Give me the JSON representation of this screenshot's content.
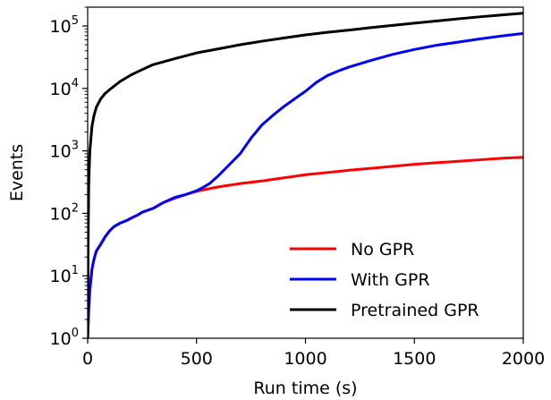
{
  "chart_data": {
    "type": "line",
    "xlabel": "Run time (s)",
    "ylabel": "Events",
    "xlim": [
      0,
      2000
    ],
    "ylim": [
      1,
      200000
    ],
    "yscale": "log",
    "x_ticks": [
      0,
      500,
      1000,
      1500,
      2000
    ],
    "x_tick_labels": [
      "0",
      "500",
      "1000",
      "1500",
      "2000"
    ],
    "y_ticks": [
      1,
      10,
      100,
      1000,
      10000,
      100000
    ],
    "y_tick_labels": [
      {
        "base": "10",
        "exp": "0"
      },
      {
        "base": "10",
        "exp": "1"
      },
      {
        "base": "10",
        "exp": "2"
      },
      {
        "base": "10",
        "exp": "3"
      },
      {
        "base": "10",
        "exp": "4"
      },
      {
        "base": "10",
        "exp": "5"
      }
    ],
    "grid": false,
    "legend_position": "lower-right",
    "series": [
      {
        "name": "No GPR",
        "color": "#ff0000",
        "points": [
          [
            0,
            1
          ],
          [
            5,
            3
          ],
          [
            10,
            6
          ],
          [
            20,
            13
          ],
          [
            30,
            19
          ],
          [
            40,
            25
          ],
          [
            60,
            32
          ],
          [
            80,
            42
          ],
          [
            100,
            52
          ],
          [
            120,
            61
          ],
          [
            150,
            70
          ],
          [
            180,
            77
          ],
          [
            200,
            84
          ],
          [
            230,
            94
          ],
          [
            250,
            104
          ],
          [
            300,
            120
          ],
          [
            350,
            150
          ],
          [
            400,
            175
          ],
          [
            450,
            200
          ],
          [
            500,
            225
          ],
          [
            550,
            245
          ],
          [
            600,
            265
          ],
          [
            700,
            300
          ],
          [
            800,
            330
          ],
          [
            900,
            370
          ],
          [
            1000,
            415
          ],
          [
            1100,
            450
          ],
          [
            1200,
            490
          ],
          [
            1300,
            525
          ],
          [
            1400,
            565
          ],
          [
            1500,
            610
          ],
          [
            1600,
            645
          ],
          [
            1700,
            680
          ],
          [
            1800,
            720
          ],
          [
            1900,
            760
          ],
          [
            2000,
            790
          ]
        ]
      },
      {
        "name": "With GPR",
        "color": "#0000ff",
        "points": [
          [
            0,
            1
          ],
          [
            5,
            3
          ],
          [
            10,
            6
          ],
          [
            20,
            13
          ],
          [
            30,
            19
          ],
          [
            40,
            25
          ],
          [
            60,
            32
          ],
          [
            80,
            42
          ],
          [
            100,
            52
          ],
          [
            120,
            61
          ],
          [
            150,
            70
          ],
          [
            180,
            77
          ],
          [
            200,
            84
          ],
          [
            230,
            94
          ],
          [
            250,
            104
          ],
          [
            300,
            120
          ],
          [
            350,
            150
          ],
          [
            400,
            180
          ],
          [
            450,
            200
          ],
          [
            500,
            230
          ],
          [
            530,
            260
          ],
          [
            560,
            300
          ],
          [
            600,
            400
          ],
          [
            650,
            600
          ],
          [
            700,
            900
          ],
          [
            750,
            1600
          ],
          [
            800,
            2600
          ],
          [
            850,
            3700
          ],
          [
            900,
            5100
          ],
          [
            950,
            6800
          ],
          [
            1000,
            9000
          ],
          [
            1050,
            12500
          ],
          [
            1100,
            16000
          ],
          [
            1150,
            19000
          ],
          [
            1200,
            22000
          ],
          [
            1300,
            28000
          ],
          [
            1400,
            35000
          ],
          [
            1500,
            42000
          ],
          [
            1600,
            49000
          ],
          [
            1700,
            55000
          ],
          [
            1800,
            62000
          ],
          [
            1900,
            69000
          ],
          [
            2000,
            76000
          ]
        ]
      },
      {
        "name": "Pretrained GPR",
        "color": "#000000",
        "points": [
          [
            0,
            1
          ],
          [
            2,
            30
          ],
          [
            5,
            300
          ],
          [
            10,
            1000
          ],
          [
            20,
            2500
          ],
          [
            30,
            3800
          ],
          [
            40,
            5000
          ],
          [
            60,
            6800
          ],
          [
            80,
            8300
          ],
          [
            100,
            9500
          ],
          [
            150,
            13000
          ],
          [
            200,
            16500
          ],
          [
            250,
            20000
          ],
          [
            300,
            24000
          ],
          [
            400,
            30000
          ],
          [
            500,
            37000
          ],
          [
            600,
            43000
          ],
          [
            700,
            50000
          ],
          [
            800,
            57000
          ],
          [
            900,
            64000
          ],
          [
            1000,
            72000
          ],
          [
            1100,
            79000
          ],
          [
            1200,
            86000
          ],
          [
            1300,
            94000
          ],
          [
            1400,
            102000
          ],
          [
            1500,
            111000
          ],
          [
            1600,
            120000
          ],
          [
            1700,
            130000
          ],
          [
            1800,
            140000
          ],
          [
            1900,
            150000
          ],
          [
            2000,
            160000
          ]
        ]
      }
    ]
  }
}
